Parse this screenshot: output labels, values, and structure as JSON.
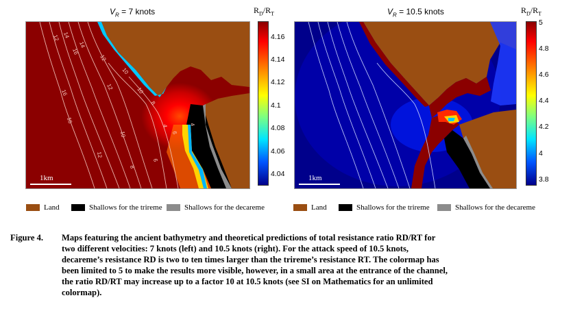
{
  "figure": {
    "left_panel": {
      "title_prefix": "V",
      "title_sub": "R",
      "title_value": " = 7 knots",
      "colorbar_title": "R",
      "colorbar_title_sub1": "D",
      "colorbar_title_sep": "/R",
      "colorbar_title_sub2": "T",
      "colorbar_ticks": [
        "4.16",
        "4.14",
        "4.12",
        "4.1",
        "4.08",
        "4.06",
        "4.04"
      ],
      "scale_label": "1km",
      "contour_labels": [
        "12",
        "14",
        "16",
        "10",
        "12",
        "14",
        "16",
        "12",
        "10",
        "16",
        "8",
        "6",
        "4",
        "10",
        "12",
        "8",
        "6",
        "4"
      ]
    },
    "right_panel": {
      "title_prefix": "V",
      "title_sub": "R",
      "title_value": " = 10.5 knots",
      "colorbar_title": "R",
      "colorbar_title_sub1": "D",
      "colorbar_title_sep": "/R",
      "colorbar_title_sub2": "T",
      "colorbar_ticks": [
        "5",
        "4.8",
        "4.6",
        "4.4",
        "4.2",
        "4",
        "3.8"
      ],
      "scale_label": "1km"
    },
    "legend": [
      {
        "label": "Land",
        "color": "#9a4e12"
      },
      {
        "label": "Shallows for the trireme",
        "color": "#000000"
      },
      {
        "label": "Shallows for the decareme",
        "color": "#8c8c8c"
      },
      {
        "label": "Land",
        "color": "#9a4e12"
      },
      {
        "label": "Shallows for the trireme",
        "color": "#000000"
      },
      {
        "label": "Shallows for the decareme",
        "color": "#8c8c8c"
      }
    ],
    "colors": {
      "land": "#9a4e12",
      "deep_red": "#8b0000",
      "deep_blue": "#00008b"
    }
  },
  "caption": {
    "label": "Figure 4.",
    "lines": [
      "Maps featuring the ancient bathymetry and theoretical predictions of total resistance ratio RD/RT  for",
      "two different velocities: 7 knots (left) and 10.5 knots (right). For the attack speed of 10.5 knots,",
      "decareme’s resistance RD is two to ten times larger than the trireme’s resistance RT. The colormap has",
      "been limited to 5 to make the results more visible, however, in a small area at the entrance of the channel,",
      "the ratio RD/RT may increase up to a factor 10 at 10.5 knots (see SI on Mathematics for an unlimited",
      "colormap)."
    ]
  }
}
